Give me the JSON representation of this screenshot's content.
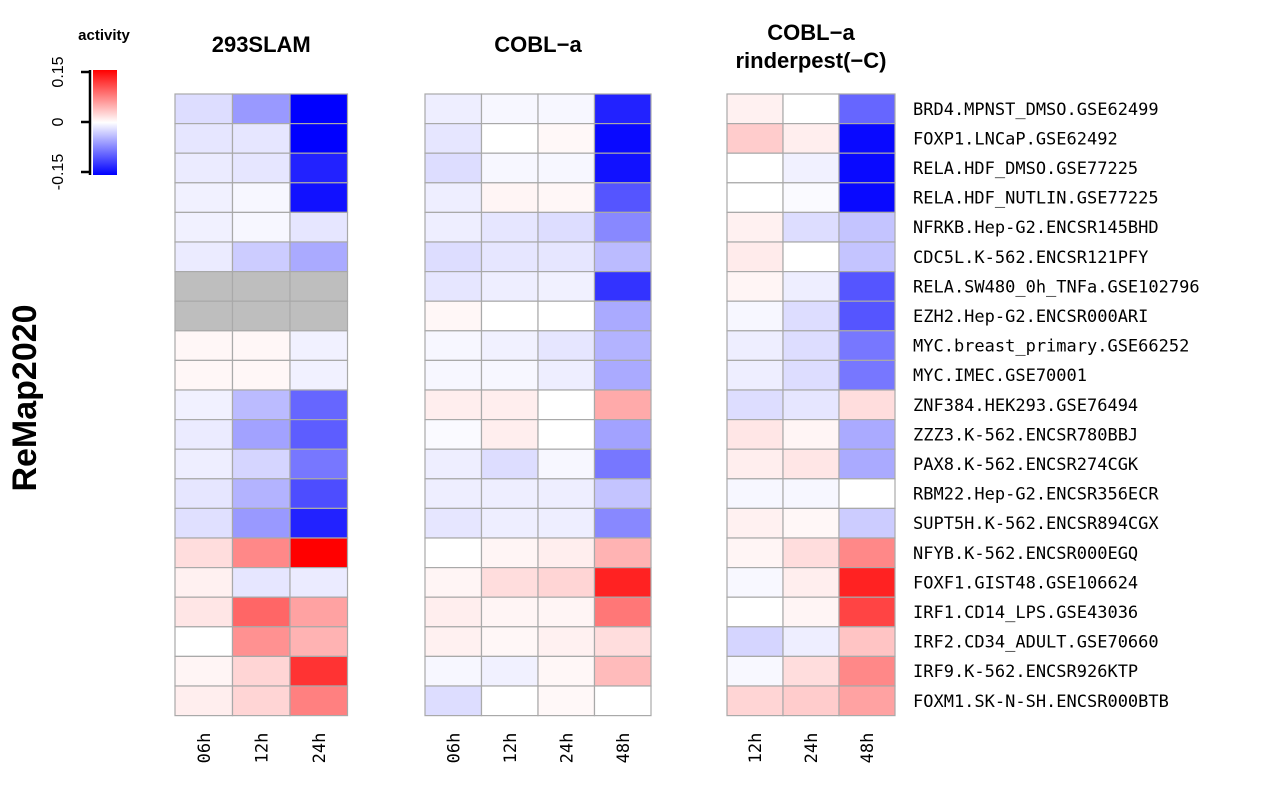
{
  "chart_data": {
    "type": "heatmap",
    "ylabel": "ReMap2020",
    "legend": {
      "title": "activity",
      "ticks": [
        "0.15",
        "0",
        "-0.15"
      ],
      "range": [
        -0.15,
        0.15
      ],
      "colors": {
        "low": "#0000ff",
        "mid": "#ffffff",
        "high": "#ff0000",
        "missing": "#bebebe"
      }
    },
    "rows": [
      "BRD4.MPNST_DMSO.GSE62499",
      "FOXP1.LNCaP.GSE62492",
      "RELA.HDF_DMSO.GSE77225",
      "RELA.HDF_NUTLIN.GSE77225",
      "NFRKB.Hep-G2.ENCSR145BHD",
      "CDC5L.K-562.ENCSR121PFY",
      "RELA.SW480_0h_TNFa.GSE102796",
      "EZH2.Hep-G2.ENCSR000ARI",
      "MYC.breast_primary.GSE66252",
      "MYC.IMEC.GSE70001",
      "ZNF384.HEK293.GSE76494",
      "ZZZ3.K-562.ENCSR780BBJ",
      "PAX8.K-562.ENCSR274CGK",
      "RBM22.Hep-G2.ENCSR356ECR",
      "SUPT5H.K-562.ENCSR894CGX",
      "NFYB.K-562.ENCSR000EGQ",
      "FOXF1.GIST48.GSE106624",
      "IRF1.CD14_LPS.GSE43036",
      "IRF2.CD34_ADULT.GSE70660",
      "IRF9.K-562.ENCSR926KTP",
      "FOXM1.SK-N-SH.ENCSR000BTB"
    ],
    "panels": [
      {
        "title": [
          "293SLAM"
        ],
        "columns": [
          "06h",
          "12h",
          "24h"
        ],
        "values": [
          [
            -0.02,
            -0.06,
            -0.15
          ],
          [
            -0.015,
            -0.015,
            -0.15
          ],
          [
            -0.012,
            -0.015,
            -0.13
          ],
          [
            -0.008,
            -0.005,
            -0.14
          ],
          [
            -0.008,
            -0.005,
            -0.015
          ],
          [
            -0.012,
            -0.03,
            -0.05
          ],
          [
            null,
            null,
            null
          ],
          [
            null,
            null,
            null
          ],
          [
            0.005,
            0.005,
            -0.008
          ],
          [
            0.005,
            0.005,
            -0.008
          ],
          [
            -0.008,
            -0.04,
            -0.09
          ],
          [
            -0.012,
            -0.055,
            -0.095
          ],
          [
            -0.01,
            -0.025,
            -0.08
          ],
          [
            -0.015,
            -0.045,
            -0.105
          ],
          [
            -0.018,
            -0.06,
            -0.13
          ],
          [
            0.02,
            0.07,
            0.15
          ],
          [
            0.008,
            -0.015,
            -0.012
          ],
          [
            0.015,
            0.09,
            0.055
          ],
          [
            0.0,
            0.065,
            0.045
          ],
          [
            0.006,
            0.025,
            0.12
          ],
          [
            0.01,
            0.025,
            0.075
          ]
        ]
      },
      {
        "title": [
          "COBL−a"
        ],
        "columns": [
          "06h",
          "12h",
          "24h",
          "48h"
        ],
        "values": [
          [
            -0.01,
            -0.005,
            -0.005,
            -0.13
          ],
          [
            -0.015,
            0.0,
            0.004,
            -0.145
          ],
          [
            -0.02,
            -0.005,
            -0.005,
            -0.14
          ],
          [
            -0.01,
            0.006,
            0.005,
            -0.1
          ],
          [
            -0.01,
            -0.015,
            -0.02,
            -0.07
          ],
          [
            -0.02,
            -0.015,
            -0.015,
            -0.04
          ],
          [
            -0.015,
            -0.01,
            -0.008,
            -0.12
          ],
          [
            0.005,
            0.0,
            0.0,
            -0.05
          ],
          [
            -0.005,
            -0.008,
            -0.015,
            -0.045
          ],
          [
            -0.005,
            -0.005,
            -0.01,
            -0.05
          ],
          [
            0.01,
            0.01,
            0.0,
            0.05
          ],
          [
            -0.003,
            0.01,
            0.0,
            -0.055
          ],
          [
            -0.01,
            -0.02,
            -0.005,
            -0.08
          ],
          [
            -0.01,
            -0.01,
            -0.01,
            -0.035
          ],
          [
            -0.015,
            -0.01,
            -0.01,
            -0.07
          ],
          [
            0.0,
            0.006,
            0.01,
            0.045
          ],
          [
            0.006,
            0.02,
            0.025,
            0.13
          ],
          [
            0.01,
            0.006,
            0.006,
            0.08
          ],
          [
            0.008,
            0.005,
            0.008,
            0.02
          ],
          [
            -0.005,
            -0.008,
            0.005,
            0.04
          ],
          [
            -0.02,
            0.0,
            0.004,
            0.0
          ]
        ]
      },
      {
        "title": [
          "COBL−a",
          "rinderpest(−C)"
        ],
        "columns": [
          "12h",
          "24h",
          "48h"
        ],
        "values": [
          [
            0.008,
            0.0,
            -0.09
          ],
          [
            0.03,
            0.01,
            -0.145
          ],
          [
            0.0,
            -0.008,
            -0.145
          ],
          [
            0.0,
            -0.003,
            -0.145
          ],
          [
            0.008,
            -0.02,
            -0.035
          ],
          [
            0.012,
            0.0,
            -0.035
          ],
          [
            0.006,
            -0.01,
            -0.1
          ],
          [
            -0.005,
            -0.02,
            -0.1
          ],
          [
            -0.01,
            -0.02,
            -0.08
          ],
          [
            -0.01,
            -0.02,
            -0.08
          ],
          [
            -0.02,
            -0.015,
            0.02
          ],
          [
            0.015,
            0.006,
            -0.05
          ],
          [
            0.01,
            0.015,
            -0.05
          ],
          [
            -0.005,
            -0.005,
            0.0
          ],
          [
            0.008,
            0.005,
            -0.03
          ],
          [
            0.006,
            0.02,
            0.07
          ],
          [
            -0.004,
            0.01,
            0.13
          ],
          [
            0.0,
            0.006,
            0.11
          ],
          [
            -0.025,
            -0.01,
            0.035
          ],
          [
            -0.004,
            0.02,
            0.07
          ],
          [
            0.025,
            0.03,
            0.055
          ]
        ]
      }
    ]
  }
}
